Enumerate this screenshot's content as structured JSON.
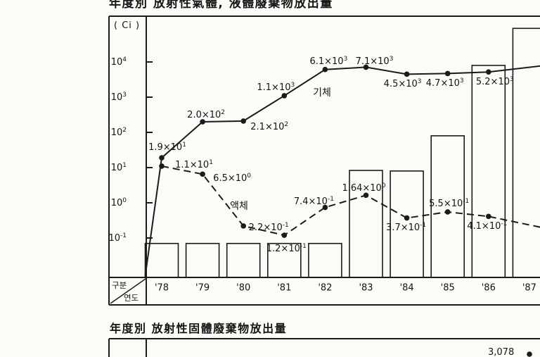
{
  "page": {
    "title_gas_liquid": "年度別 放射性氣體, 液體廢棄物放出量",
    "title_solid": "年度別 放射性固體廢棄物放出量"
  },
  "chart1": {
    "unit_label": "( Ci )",
    "corner": {
      "top": "구분",
      "bottom": "연도"
    },
    "y_tick_exponents": [
      4,
      3,
      2,
      1,
      0,
      -1
    ],
    "categories": [
      "'78",
      "'79",
      "'80",
      "'81",
      "'82",
      "'83",
      "'84",
      "'85",
      "'86",
      "'87"
    ]
  },
  "chart2": {
    "visible_point_label": "3,078"
  },
  "chart_data": [
    {
      "type": "line",
      "title": "年度別 放射性氣體, 液體廢棄物放出量",
      "ylabel": "Ci",
      "y_scale": "log10",
      "y_ticks": [
        "10^4",
        "10^3",
        "10^2",
        "10^1",
        "10^0",
        "10^-1"
      ],
      "categories": [
        "'78",
        "'79",
        "'80",
        "'81",
        "'82",
        "'83",
        "'84",
        "'85",
        "'86",
        "'87"
      ],
      "series": [
        {
          "name": "기체",
          "type": "line",
          "line_style": "solid",
          "values": [
            19,
            200,
            210,
            1100,
            6100,
            7100,
            4500,
            4700,
            5200,
            null
          ],
          "point_labels": [
            "1.9×10^1",
            "2.0×10^2",
            "2.1×10^2",
            "1.1×10^3",
            "6.1×10^3",
            "7.1×10^3",
            "4.5×10^3",
            "4.7×10^3",
            "5.2×10^3",
            ""
          ]
        },
        {
          "name": "액체",
          "type": "line",
          "line_style": "dashed",
          "values": [
            11,
            6.5,
            0.22,
            0.12,
            0.74,
            1.64,
            0.37,
            0.55,
            0.41,
            null
          ],
          "point_labels": [
            "1.1×10^1",
            "6.5×10^0",
            "2.2×10^-1",
            "1.2×10^-1",
            "7.4×10^-1",
            "1.64×10^0",
            "3.7×10^-1",
            "5.5×10^-1",
            "4.1×10^-1",
            ""
          ]
        },
        {
          "name": "",
          "type": "bar",
          "values": [
            0.07,
            0.07,
            0.07,
            0.07,
            0.07,
            8.3,
            8.0,
            80,
            8000,
            90000
          ],
          "note": "unlabeled outline bars; values estimated from log axis"
        }
      ]
    },
    {
      "type": "line",
      "title": "年度別 放射性固體廢棄物放出量",
      "visible_labels": [
        "3,078"
      ],
      "truncated": true
    }
  ]
}
